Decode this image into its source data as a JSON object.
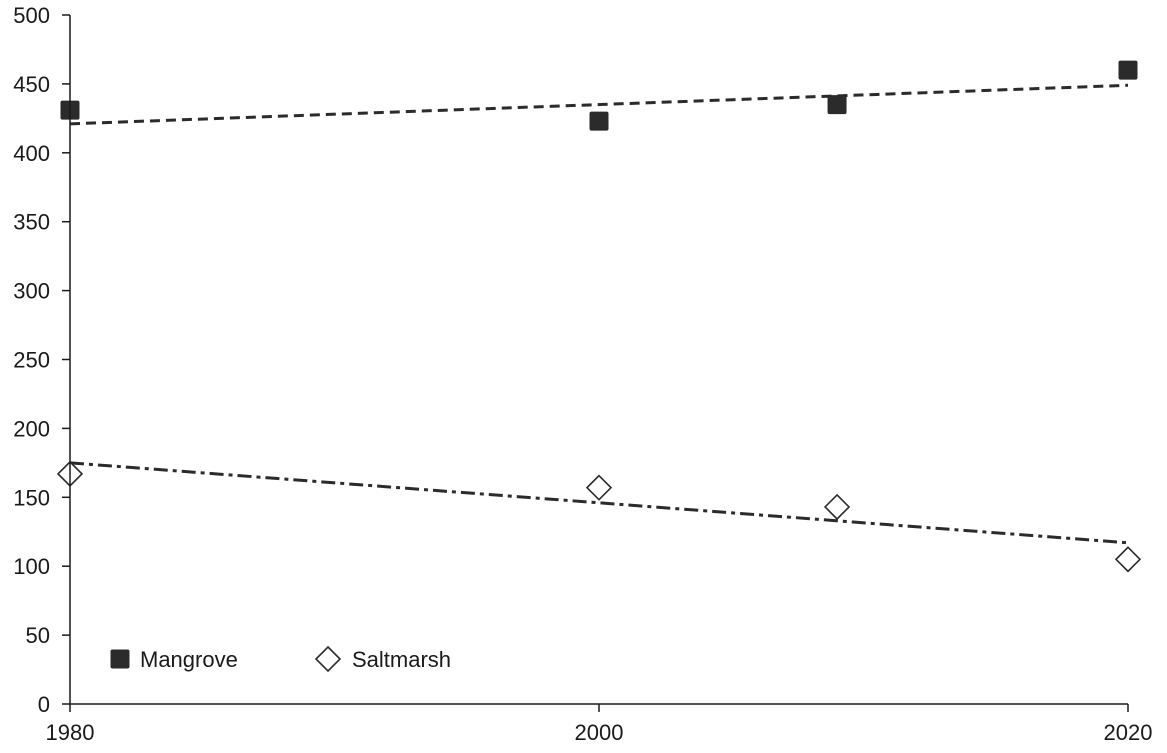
{
  "chart_data": {
    "type": "scatter",
    "title": "",
    "xlabel": "",
    "ylabel": "",
    "xlim": [
      1980,
      2020
    ],
    "ylim": [
      0,
      500
    ],
    "x_ticks": [
      "1980",
      "2000",
      "2020"
    ],
    "y_ticks": [
      "0",
      "50",
      "100",
      "150",
      "200",
      "250",
      "300",
      "350",
      "400",
      "450",
      "500"
    ],
    "grid": false,
    "legend_position": "bottom-left",
    "series": [
      {
        "name": "Mangrove",
        "marker": "filled-square",
        "color": "#2b2b2b",
        "points": [
          {
            "x": 1980,
            "y": 431
          },
          {
            "x": 2000,
            "y": 423
          },
          {
            "x": 2009,
            "y": 435
          },
          {
            "x": 2020,
            "y": 460
          }
        ],
        "trendline": {
          "style": "dashed",
          "from": {
            "x": 1980,
            "y": 421
          },
          "to": {
            "x": 2020,
            "y": 449
          }
        }
      },
      {
        "name": "Saltmarsh",
        "marker": "open-diamond",
        "color": "#2b2b2b",
        "points": [
          {
            "x": 1980,
            "y": 167
          },
          {
            "x": 2000,
            "y": 157
          },
          {
            "x": 2009,
            "y": 143
          },
          {
            "x": 2020,
            "y": 105
          }
        ],
        "trendline": {
          "style": "dash-dot",
          "from": {
            "x": 1980,
            "y": 175
          },
          "to": {
            "x": 2020,
            "y": 117
          }
        }
      }
    ]
  }
}
